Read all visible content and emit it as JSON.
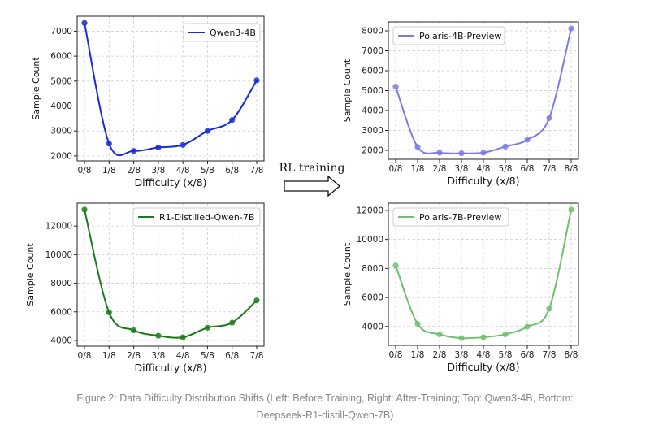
{
  "chart_data": [
    {
      "type": "line",
      "categories": [
        "0/8",
        "1/8",
        "2/8",
        "3/8",
        "4/8",
        "5/8",
        "6/8",
        "7/8"
      ],
      "series": [
        {
          "name": "Qwen3-4B",
          "values": [
            7330,
            2490,
            2200,
            2340,
            2440,
            3000,
            3440,
            5030
          ],
          "color": "#1a2bd6"
        }
      ],
      "xlabel": "Difficulty (x/8)",
      "ylabel": "Sample Count",
      "yticks": [
        2000,
        3000,
        4000,
        5000,
        6000,
        7000
      ],
      "ylim": [
        1800,
        7600
      ],
      "grid": true,
      "legend": "top-right"
    },
    {
      "type": "line",
      "categories": [
        "0/8",
        "1/8",
        "2/8",
        "3/8",
        "4/8",
        "5/8",
        "6/8",
        "7/8",
        "8/8"
      ],
      "series": [
        {
          "name": "Polaris-4B-Preview",
          "values": [
            5200,
            2170,
            1880,
            1850,
            1880,
            2190,
            2530,
            3620,
            8120
          ],
          "color": "#7b7be6"
        }
      ],
      "xlabel": "Difficulty (x/8)",
      "ylabel": "Sample Count",
      "yticks": [
        2000,
        3000,
        4000,
        5000,
        6000,
        7000,
        8000
      ],
      "ylim": [
        1550,
        8450
      ],
      "grid": true,
      "legend": "top-left"
    },
    {
      "type": "line",
      "categories": [
        "0/8",
        "1/8",
        "2/8",
        "3/8",
        "4/8",
        "5/8",
        "6/8",
        "7/8"
      ],
      "series": [
        {
          "name": "R1-Distilled-Qwen-7B",
          "values": [
            13150,
            5960,
            4710,
            4330,
            4220,
            4890,
            5240,
            6800
          ],
          "color": "#1b7a1b"
        }
      ],
      "xlabel": "Difficulty (x/8)",
      "ylabel": "Sample Count",
      "yticks": [
        4000,
        6000,
        8000,
        10000,
        12000
      ],
      "ylim": [
        3600,
        13600
      ],
      "grid": true,
      "legend": "top-right"
    },
    {
      "type": "line",
      "categories": [
        "0/8",
        "1/8",
        "2/8",
        "3/8",
        "4/8",
        "5/8",
        "6/8",
        "7/8",
        "8/8"
      ],
      "series": [
        {
          "name": "Polaris-7B-Preview",
          "values": [
            8200,
            4180,
            3460,
            3200,
            3260,
            3460,
            3990,
            5230,
            12050
          ],
          "color": "#6fbf6f"
        }
      ],
      "xlabel": "Difficulty (x/8)",
      "ylabel": "Sample Count",
      "yticks": [
        4000,
        6000,
        8000,
        10000,
        12000
      ],
      "ylim": [
        2700,
        12500
      ],
      "grid": true,
      "legend": "top-left"
    }
  ],
  "annotation": {
    "text": "RL training"
  },
  "caption": {
    "line1": "Figure 2: Data Difficulty Distribution Shifts (Left: Before Training, Right: After-Training; Top: Qwen3-4B, Bottom:",
    "line2": "Deepseek-R1-distill-Qwen-7B)"
  }
}
